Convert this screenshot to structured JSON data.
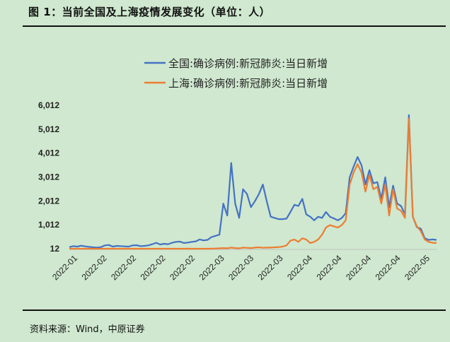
{
  "figure": {
    "title": "图 1：当前全国及上海疫情发展变化（单位：人）",
    "source": "资料来源：Wind，中原证券"
  },
  "chart_data": {
    "type": "line",
    "title": "",
    "xlabel": "",
    "ylabel": "",
    "ylim": [
      12,
      6012
    ],
    "y_ticks": [
      12,
      1012,
      2012,
      3012,
      4012,
      5012,
      6012
    ],
    "y_tick_labels": [
      "12",
      "1,012",
      "2,012",
      "3,012",
      "4,012",
      "5,012",
      "6,012"
    ],
    "x_tick_labels": [
      "2022-01",
      "2022-02",
      "2022-02",
      "2022-02",
      "2022-02",
      "2022-03",
      "2022-03",
      "2022-03",
      "2022-04",
      "2022-04",
      "2022-04",
      "2022-04",
      "2022-05"
    ],
    "legend_position": "top-center",
    "grid": false,
    "series": [
      {
        "name": "全国:确诊病例:新冠肺炎:当日新增",
        "color": "#4472c4",
        "values": [
          80,
          120,
          100,
          140,
          110,
          90,
          70,
          60,
          80,
          150,
          170,
          100,
          130,
          120,
          110,
          100,
          150,
          160,
          120,
          130,
          150,
          200,
          260,
          190,
          220,
          200,
          260,
          300,
          310,
          250,
          270,
          300,
          320,
          400,
          360,
          380,
          500,
          550,
          600,
          1900,
          1400,
          3600,
          1900,
          1300,
          2500,
          2300,
          1750,
          2000,
          2300,
          2700,
          2000,
          1350,
          1300,
          1250,
          1250,
          1270,
          1550,
          1850,
          1800,
          2100,
          1450,
          1350,
          1200,
          1350,
          1300,
          1550,
          1350,
          1280,
          1200,
          1300,
          1500,
          3000,
          3450,
          3850,
          3500,
          2700,
          3300,
          2750,
          2800,
          2100,
          3000,
          1750,
          2650,
          1900,
          1800,
          1450,
          5600,
          1350,
          920,
          850,
          450,
          380,
          400,
          380
        ]
      },
      {
        "name": "上海:确诊病例:新冠肺炎:当日新增",
        "color": "#ed7d31",
        "values": [
          10,
          10,
          8,
          8,
          8,
          8,
          8,
          8,
          8,
          8,
          8,
          8,
          8,
          8,
          8,
          8,
          8,
          8,
          8,
          8,
          8,
          8,
          8,
          8,
          8,
          8,
          8,
          12,
          10,
          12,
          15,
          10,
          10,
          12,
          12,
          10,
          15,
          20,
          30,
          40,
          30,
          60,
          40,
          30,
          60,
          50,
          40,
          60,
          70,
          50,
          60,
          60,
          70,
          80,
          100,
          150,
          350,
          400,
          300,
          450,
          400,
          250,
          300,
          400,
          600,
          900,
          1000,
          950,
          900,
          1000,
          1200,
          2700,
          3200,
          3550,
          3200,
          2400,
          3100,
          2500,
          2600,
          1900,
          2700,
          1400,
          2500,
          1700,
          1600,
          1300,
          5450,
          1350,
          950,
          750,
          400,
          300,
          260,
          250
        ]
      }
    ]
  }
}
